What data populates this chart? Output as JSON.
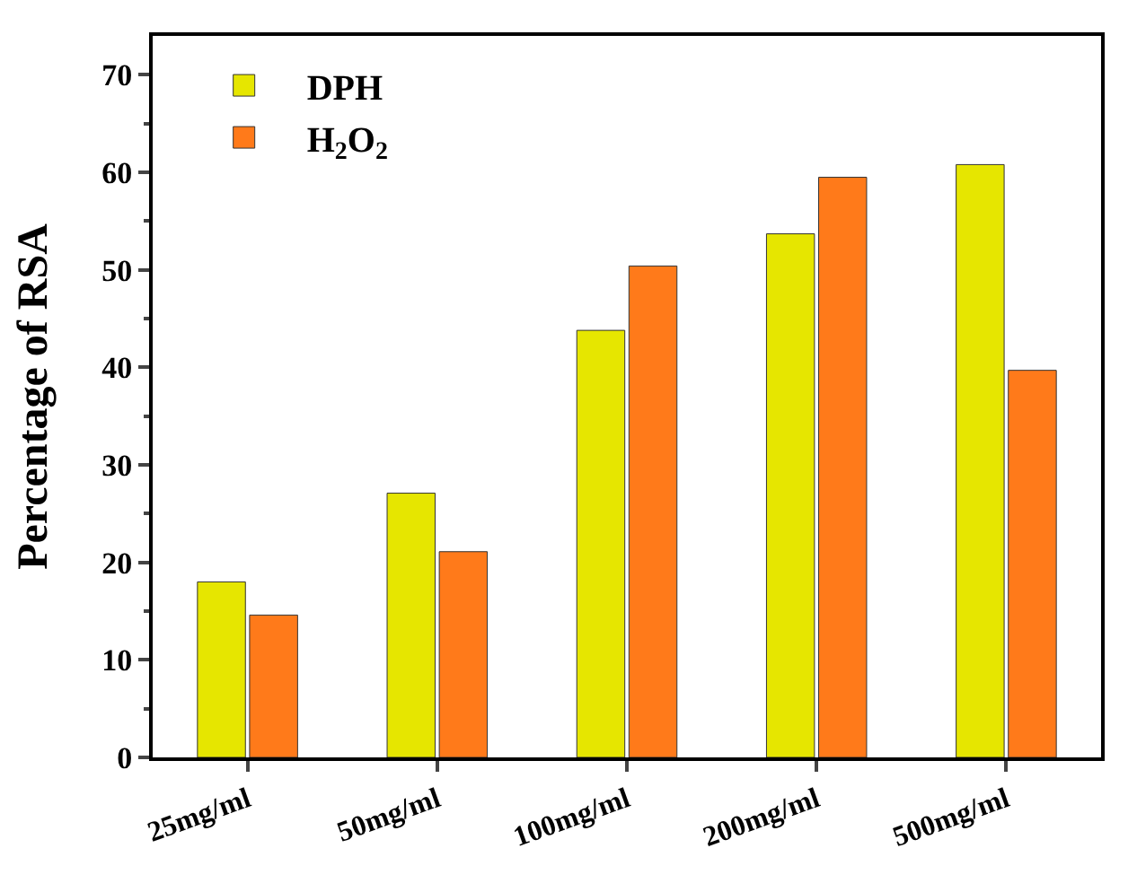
{
  "chart_data": {
    "type": "bar",
    "ylabel": "Percentage of RSA",
    "categories": [
      "25mg/ml",
      "50mg/ml",
      "100mg/ml",
      "200mg/ml",
      "500mg/ml"
    ],
    "series": [
      {
        "name": "DPH",
        "color": "#e6e600",
        "values": [
          18,
          27.1,
          43.8,
          53.7,
          60.8
        ]
      },
      {
        "name": "H$_{2}$O$_{2}$",
        "color": "#ff7a1a",
        "values": [
          14.6,
          21.1,
          50.4,
          59.5,
          39.7
        ]
      }
    ],
    "ylim": [
      0,
      74
    ],
    "yticks": [
      0,
      10,
      20,
      30,
      40,
      50,
      60,
      70
    ],
    "grid": false,
    "legend": "top left"
  }
}
